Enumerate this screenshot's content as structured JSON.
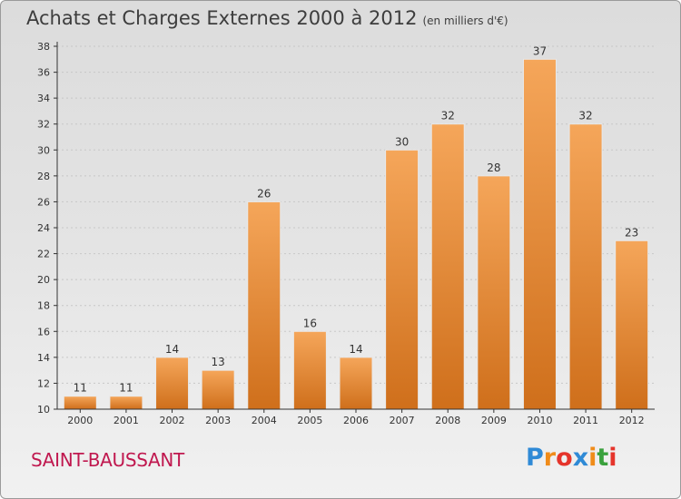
{
  "title": "Achats et Charges Externes 2000 à 2012",
  "subtitle": "(en milliers d'€)",
  "commune": "SAINT-BAUSSANT",
  "logo": {
    "letters": [
      "P",
      "r",
      "o",
      "x",
      "i",
      "t",
      "i"
    ],
    "colors": [
      "#2f8ad6",
      "#f08c1a",
      "#e5342b",
      "#2f8ad6",
      "#f08c1a",
      "#3aa13d",
      "#e5342b"
    ]
  },
  "colors": {
    "bar_light": "#f5a65a",
    "bar_dark": "#cf6f1b",
    "axis": "#333333",
    "grid": "#c7c7c7"
  },
  "chart_data": {
    "type": "bar",
    "categories": [
      "2000",
      "2001",
      "2002",
      "2003",
      "2004",
      "2005",
      "2006",
      "2007",
      "2008",
      "2009",
      "2010",
      "2011",
      "2012"
    ],
    "values": [
      11,
      11,
      14,
      13,
      26,
      16,
      14,
      30,
      32,
      28,
      37,
      32,
      23
    ],
    "ylim": [
      10,
      38
    ],
    "yticks": [
      10,
      12,
      14,
      16,
      18,
      20,
      22,
      24,
      26,
      28,
      30,
      32,
      34,
      36,
      38
    ],
    "grid": true,
    "data_labels": true
  }
}
